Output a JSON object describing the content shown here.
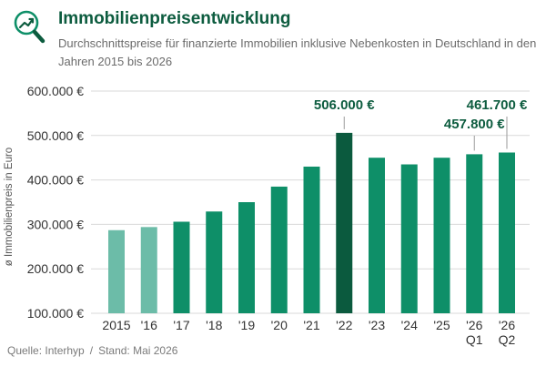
{
  "header": {
    "title": "Immobilienpreisentwicklung",
    "subtitle": "Durchschnittspreise für finanzierte Immobilien inklusive Nebenkosten in Deutschland in den Jahren 2015 bis 2026",
    "logo_icon": "magnifier-trend-icon"
  },
  "colors": {
    "brand": "#0d5c3f",
    "bar_light": "#6cbca8",
    "bar_main": "#0e8f68",
    "bar_highlight": "#0b5a3e",
    "grid": "#d9d9d9"
  },
  "chart_data": {
    "type": "bar",
    "ylabel": "ø Immobilienpreis in Euro",
    "ylim": [
      100000,
      600000
    ],
    "yticks": [
      {
        "value": 100000,
        "label": "100.000 €"
      },
      {
        "value": 200000,
        "label": "200.000 €"
      },
      {
        "value": 300000,
        "label": "300.000 €"
      },
      {
        "value": 400000,
        "label": "400.000 €"
      },
      {
        "value": 500000,
        "label": "500.000 €"
      },
      {
        "value": 600000,
        "label": "600.000 €"
      }
    ],
    "grid": true,
    "categories": [
      {
        "label": "2015",
        "sublabel": "",
        "value": 287000,
        "style": "light"
      },
      {
        "label": "'16",
        "sublabel": "",
        "value": 294000,
        "style": "light"
      },
      {
        "label": "'17",
        "sublabel": "",
        "value": 306000,
        "style": "main"
      },
      {
        "label": "'18",
        "sublabel": "",
        "value": 329000,
        "style": "main"
      },
      {
        "label": "'19",
        "sublabel": "",
        "value": 350000,
        "style": "main"
      },
      {
        "label": "'20",
        "sublabel": "",
        "value": 385000,
        "style": "main"
      },
      {
        "label": "'21",
        "sublabel": "",
        "value": 430000,
        "style": "main"
      },
      {
        "label": "'22",
        "sublabel": "",
        "value": 506000,
        "style": "highlight"
      },
      {
        "label": "'23",
        "sublabel": "",
        "value": 450000,
        "style": "main"
      },
      {
        "label": "'24",
        "sublabel": "",
        "value": 435000,
        "style": "main"
      },
      {
        "label": "'25",
        "sublabel": "",
        "value": 450000,
        "style": "main"
      },
      {
        "label": "'26",
        "sublabel": "Q1",
        "value": 457800,
        "style": "main"
      },
      {
        "label": "'26",
        "sublabel": "Q2",
        "value": 461700,
        "style": "main"
      }
    ],
    "annotations": [
      {
        "index": 7,
        "text": "506.000 €"
      },
      {
        "index": 11,
        "text": "457.800 €"
      },
      {
        "index": 12,
        "text": "461.700 €"
      }
    ]
  },
  "footer": {
    "source": "Quelle: Interhyp",
    "separator": "/",
    "date": "Stand: Mai 2026"
  }
}
